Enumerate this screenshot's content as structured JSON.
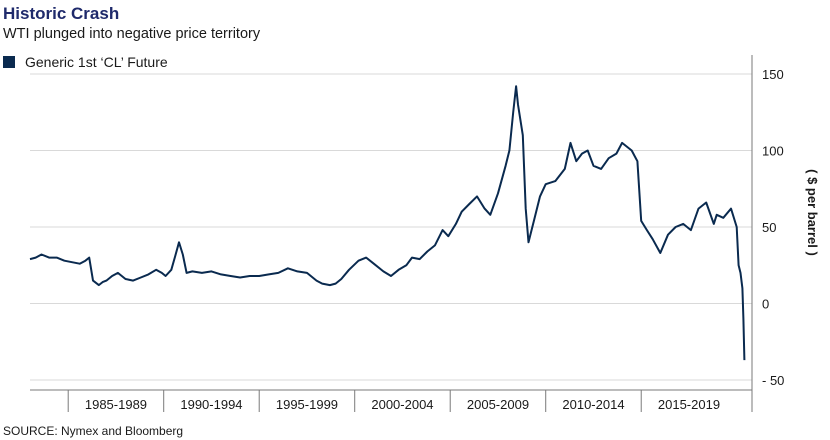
{
  "title": "Historic Crash",
  "subtitle": "WTI plunged into negative price territory",
  "source": "SOURCE: Nymex and Bloomberg",
  "colors": {
    "title": "#1f2a6b",
    "series": "#0a2a4f",
    "grid": "#d9d9d9",
    "axis": "#7a7a7a"
  },
  "chart_data": {
    "type": "line",
    "title": "Historic Crash",
    "subtitle": "WTI plunged into negative price territory",
    "ylabel": "( $ per barrel )",
    "xlabel": "",
    "legend": "top-left",
    "grid": "horizontal",
    "y_axis_position": "right",
    "ylim": [
      -50,
      150
    ],
    "yticks": [
      150,
      100,
      50,
      0,
      -50
    ],
    "ytick_labels": [
      "150",
      "100",
      "50",
      "0",
      "- 50"
    ],
    "xlim": [
      1983.0,
      2020.8
    ],
    "x_groups": [
      {
        "label": "1985-1989",
        "start": 1985,
        "end": 1990
      },
      {
        "label": "1990-1994",
        "start": 1990,
        "end": 1995
      },
      {
        "label": "1995-1999",
        "start": 1995,
        "end": 2000
      },
      {
        "label": "2000-2004",
        "start": 2000,
        "end": 2005
      },
      {
        "label": "2005-2009",
        "start": 2005,
        "end": 2010
      },
      {
        "label": "2010-2014",
        "start": 2010,
        "end": 2015
      },
      {
        "label": "2015-2019",
        "start": 2015,
        "end": 2020
      }
    ],
    "series": [
      {
        "name": "Generic 1st ‘CL’ Future",
        "x": [
          1983.0,
          1983.3,
          1983.6,
          1984.0,
          1984.4,
          1984.8,
          1985.2,
          1985.6,
          1985.9,
          1986.1,
          1986.3,
          1986.6,
          1986.8,
          1987.0,
          1987.3,
          1987.6,
          1988.0,
          1988.4,
          1988.8,
          1989.2,
          1989.6,
          1989.9,
          1990.1,
          1990.4,
          1990.6,
          1990.8,
          1991.0,
          1991.2,
          1991.5,
          1992.0,
          1992.5,
          1993.0,
          1993.5,
          1994.0,
          1994.5,
          1995.0,
          1995.5,
          1996.0,
          1996.5,
          1997.0,
          1997.5,
          1998.0,
          1998.3,
          1998.7,
          1999.0,
          1999.3,
          1999.7,
          2000.2,
          2000.6,
          2001.0,
          2001.5,
          2001.9,
          2002.3,
          2002.7,
          2003.0,
          2003.4,
          2003.8,
          2004.2,
          2004.6,
          2004.9,
          2005.3,
          2005.6,
          2006.0,
          2006.4,
          2006.8,
          2007.1,
          2007.5,
          2007.9,
          2008.1,
          2008.3,
          2008.45,
          2008.55,
          2008.8,
          2008.95,
          2009.1,
          2009.4,
          2009.7,
          2010.0,
          2010.5,
          2011.0,
          2011.3,
          2011.6,
          2011.9,
          2012.2,
          2012.5,
          2012.9,
          2013.3,
          2013.7,
          2014.0,
          2014.5,
          2014.8,
          2015.0,
          2015.3,
          2015.6,
          2016.0,
          2016.4,
          2016.8,
          2017.2,
          2017.6,
          2018.0,
          2018.4,
          2018.8,
          2018.95,
          2019.3,
          2019.7,
          2020.0,
          2020.1,
          2020.2,
          2020.3,
          2020.35,
          2020.4
        ],
        "y": [
          29,
          30,
          32,
          30,
          30,
          28,
          27,
          26,
          28,
          30,
          15,
          12,
          14,
          15,
          18,
          20,
          16,
          15,
          17,
          19,
          22,
          20,
          18,
          22,
          31,
          40,
          32,
          20,
          21,
          20,
          21,
          19,
          18,
          17,
          18,
          18,
          19,
          20,
          23,
          21,
          20,
          15,
          13,
          12,
          13,
          16,
          22,
          28,
          30,
          26,
          21,
          18,
          22,
          25,
          30,
          29,
          34,
          38,
          48,
          44,
          52,
          60,
          65,
          70,
          62,
          58,
          72,
          90,
          100,
          125,
          142,
          130,
          110,
          62,
          40,
          55,
          70,
          78,
          80,
          88,
          105,
          93,
          98,
          100,
          90,
          88,
          95,
          98,
          105,
          100,
          93,
          54,
          48,
          42,
          33,
          45,
          50,
          52,
          48,
          62,
          66,
          52,
          58,
          56,
          62,
          50,
          25,
          20,
          10,
          -10,
          -37
        ]
      }
    ]
  }
}
